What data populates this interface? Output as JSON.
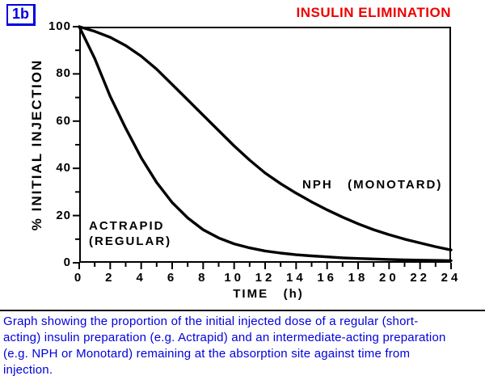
{
  "figure_label": "1b",
  "title": "INSULIN ELIMINATION",
  "colors": {
    "title": "#ee0000",
    "figure_label": "#0000dd",
    "caption": "#0000dd",
    "curves": "#000000",
    "axes": "#000000"
  },
  "axes": {
    "y_title": "% INITIAL INJECTION",
    "x_title": "TIME   (h)",
    "y_ticks": [
      0,
      20,
      40,
      60,
      80,
      100
    ],
    "y_minor_ticks": [
      10,
      30,
      50,
      70,
      90
    ],
    "x_ticks": [
      0,
      2,
      4,
      6,
      8,
      10,
      12,
      14,
      16,
      18,
      20,
      22,
      24
    ],
    "x_minor_ticks": [
      1,
      3,
      5,
      7,
      9,
      11,
      13,
      15,
      17,
      19,
      21,
      23
    ]
  },
  "curve_labels": {
    "actrapid": "ACTRAPID\n(REGULAR)",
    "nph": "NPH   (MONOTARD)"
  },
  "chart_data": {
    "type": "line",
    "title": "INSULIN ELIMINATION",
    "xlabel": "TIME (h)",
    "ylabel": "% INITIAL INJECTION",
    "xlim": [
      0,
      24
    ],
    "ylim": [
      0,
      100
    ],
    "grid": false,
    "legend_position": "inline-annotations",
    "x": [
      0,
      1,
      2,
      3,
      4,
      5,
      6,
      7,
      8,
      9,
      10,
      11,
      12,
      13,
      14,
      15,
      16,
      17,
      18,
      19,
      20,
      21,
      22,
      23,
      24
    ],
    "series": [
      {
        "name": "ACTRAPID (REGULAR)",
        "values": [
          100,
          86.5,
          70.5,
          57,
          44.5,
          34,
          25.5,
          19,
          14,
          10.5,
          8,
          6.3,
          5,
          4.1,
          3.4,
          2.9,
          2.5,
          2.1,
          1.8,
          1.6,
          1.4,
          1.2,
          1.1,
          1.0,
          0.9
        ]
      },
      {
        "name": "NPH (MONOTARD)",
        "values": [
          100,
          98,
          95.5,
          92,
          87.5,
          82,
          75.5,
          69,
          62.5,
          56,
          49.5,
          43.5,
          38,
          33.5,
          29.5,
          25.8,
          22.4,
          19.3,
          16.5,
          14,
          11.9,
          10,
          8.4,
          6.8,
          5.4
        ]
      }
    ],
    "annotations": [
      {
        "text": "ACTRAPID (REGULAR)",
        "x": 1.0,
        "y": 16
      },
      {
        "text": "NPH (MONOTARD)",
        "x": 14.5,
        "y": 32
      }
    ]
  },
  "caption": {
    "lines": [
      "Graph showing the proportion of the initial injected dose of a regular (short-",
      "acting) insulin preparation (e.g. Actrapid) and an intermediate-acting preparation",
      "(e.g. NPH or Monotard) remaining at the absorption site against time from",
      "injection."
    ]
  }
}
